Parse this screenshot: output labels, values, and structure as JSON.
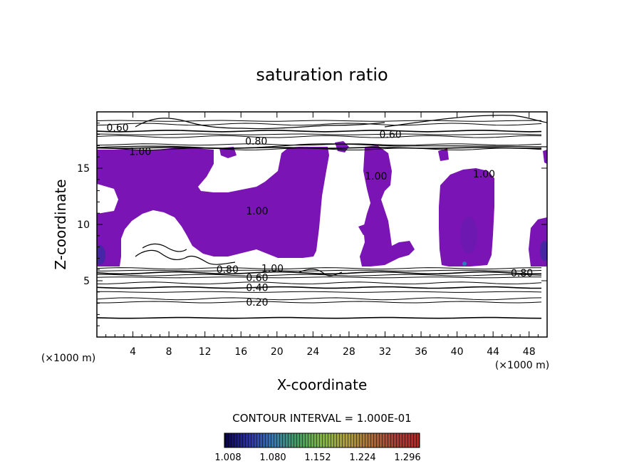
{
  "chart_data": {
    "type": "contour",
    "title": "saturation ratio",
    "xlabel": "X-coordinate",
    "ylabel": "Z-coordinate",
    "x_unit_label": "(×1000 m)",
    "x_unit_label_right": "(×1000 m)",
    "x_ticks": [
      4,
      8,
      12,
      16,
      20,
      24,
      28,
      32,
      36,
      40,
      44,
      48
    ],
    "y_ticks": [
      5,
      10,
      15
    ],
    "xlim": [
      0,
      50
    ],
    "ylim": [
      0,
      20
    ],
    "contour_interval_text": "CONTOUR INTERVAL = 1.000E-01",
    "contour_labels": [
      {
        "text": "0.60",
        "x": 2.3,
        "z": 18.6
      },
      {
        "text": "0.60",
        "x": 32.6,
        "z": 18.0
      },
      {
        "text": "0.80",
        "x": 17.7,
        "z": 17.4
      },
      {
        "text": "1.00",
        "x": 4.8,
        "z": 16.5
      },
      {
        "text": "1.00",
        "x": 43.0,
        "z": 14.5
      },
      {
        "text": "1.00",
        "x": 31.0,
        "z": 14.3
      },
      {
        "text": "1.00",
        "x": 17.8,
        "z": 11.2
      },
      {
        "text": "0.80",
        "x": 14.5,
        "z": 6.0
      },
      {
        "text": "1.00",
        "x": 19.5,
        "z": 6.1
      },
      {
        "text": "0.80",
        "x": 47.2,
        "z": 5.7
      },
      {
        "text": "0.60",
        "x": 17.8,
        "z": 5.3
      },
      {
        "text": "0.40",
        "x": 17.8,
        "z": 4.4
      },
      {
        "text": "0.20",
        "x": 17.8,
        "z": 3.1
      }
    ],
    "horizontal_contours_z": [
      1.7,
      3.1,
      3.4,
      4.0,
      4.4,
      4.8,
      5.3,
      5.5,
      5.7,
      5.9,
      6.1,
      16.7,
      16.8,
      17.1,
      17.8,
      18.0,
      18.3,
      18.9,
      19.2
    ],
    "colorbar": {
      "tick_labels": [
        "1.008",
        "1.080",
        "1.152",
        "1.224",
        "1.296"
      ],
      "colors": [
        "#0a0050",
        "#2a2fb5",
        "#2f7ab8",
        "#3aa35a",
        "#7dba3a",
        "#b0a030",
        "#b06a30",
        "#b03a30",
        "#c02020"
      ]
    },
    "fill_color": "#7a14b4",
    "fill_description": "supersaturated regions (saturation ratio > 1.0)"
  }
}
